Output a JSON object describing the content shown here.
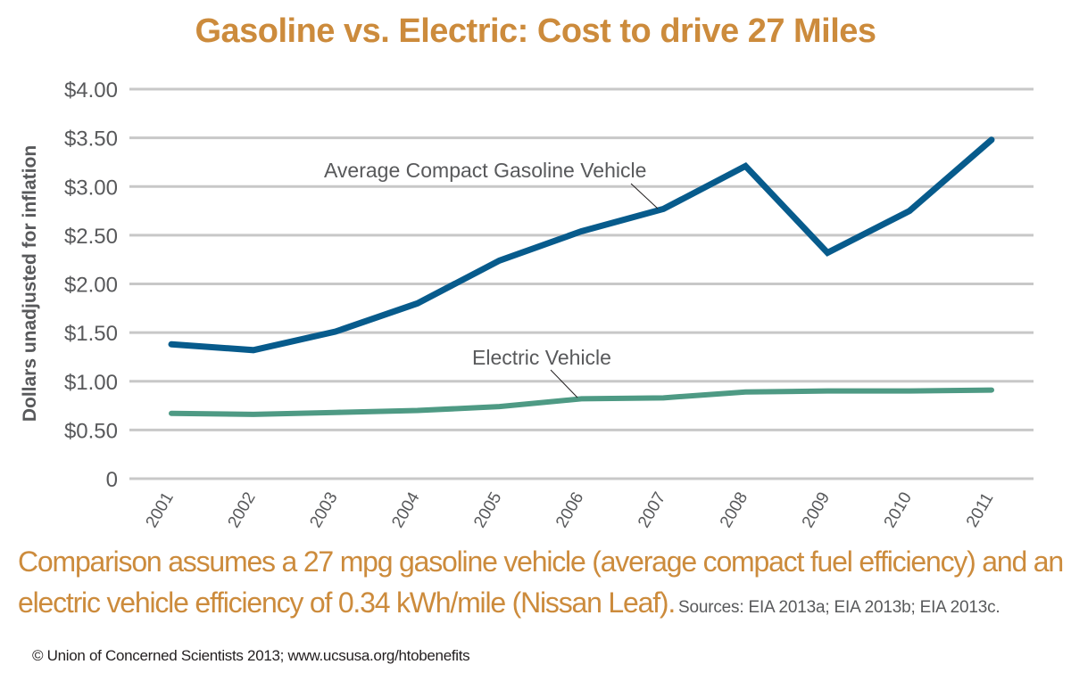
{
  "title": "Gasoline vs. Electric: Cost to drive 27 Miles",
  "footnote": {
    "line1": "Comparison assumes a 27 mpg gasoline vehicle (average compact fuel efficiency) and an",
    "line2": "electric vehicle efficiency of 0.34 kWh/mile (Nissan Leaf).",
    "sources": "Sources: EIA 2013a; EIA 2013b; EIA 2013c."
  },
  "copyright": "© Union of Concerned Scientists 2013; www.ucsusa.org/htobenefits",
  "colors": {
    "title": "#cc8b3c",
    "gasoline": "#075b8c",
    "electric": "#4e9a84",
    "grid": "#c8c8c8",
    "text": "#58595b"
  },
  "chart_data": {
    "type": "line",
    "title": "Gasoline vs. Electric: Cost to drive 27 Miles",
    "xlabel": "",
    "ylabel": "Dollars unadjusted for inflation",
    "x": [
      "2001",
      "2002",
      "2003",
      "2004",
      "2005",
      "2006",
      "2007",
      "2008",
      "2009",
      "2010",
      "2011"
    ],
    "ylim": [
      0,
      4
    ],
    "yticks": [
      0,
      0.5,
      1,
      1.5,
      2,
      2.5,
      3,
      3.5,
      4
    ],
    "ytick_labels": [
      "0",
      "$0.50",
      "$1.00",
      "$1.50",
      "$2.00",
      "$2.50",
      "$3.00",
      "$3.50",
      "$4.00"
    ],
    "grid": true,
    "legend": "inline annotations",
    "series": [
      {
        "name": "Average Compact Gasoline Vehicle",
        "values": [
          1.38,
          1.32,
          1.51,
          1.8,
          2.24,
          2.54,
          2.77,
          3.21,
          2.32,
          2.75,
          3.48
        ],
        "label_anchor_index": 7
      },
      {
        "name": "Electric Vehicle",
        "values": [
          0.67,
          0.66,
          0.68,
          0.7,
          0.74,
          0.82,
          0.83,
          0.89,
          0.9,
          0.9,
          0.91
        ],
        "label_anchor_index": 6
      }
    ]
  }
}
